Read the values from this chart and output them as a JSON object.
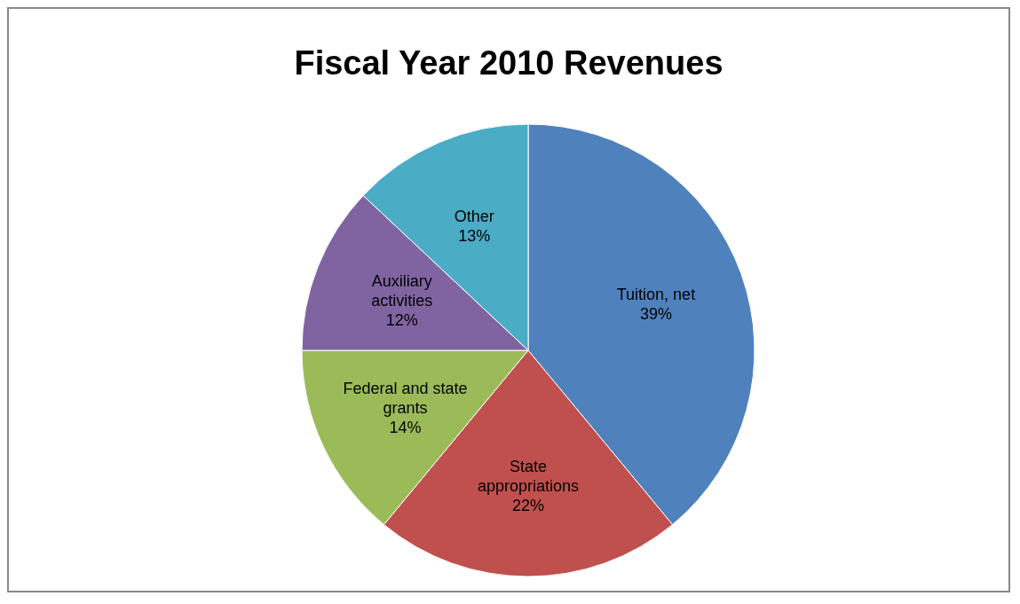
{
  "chart_data": {
    "type": "pie",
    "title": "Fiscal Year 2010 Revenues",
    "categories": [
      "Tuition, net",
      "State appropriations",
      "Federal and state grants",
      "Auxiliary activities",
      "Other"
    ],
    "values": [
      39,
      22,
      14,
      12,
      13
    ],
    "value_labels": [
      "39%",
      "22%",
      "14%",
      "12%",
      "13%"
    ],
    "colors": [
      "#4f81bd",
      "#c0504d",
      "#9bbb59",
      "#8064a2",
      "#4bacc6"
    ],
    "legend": false
  }
}
